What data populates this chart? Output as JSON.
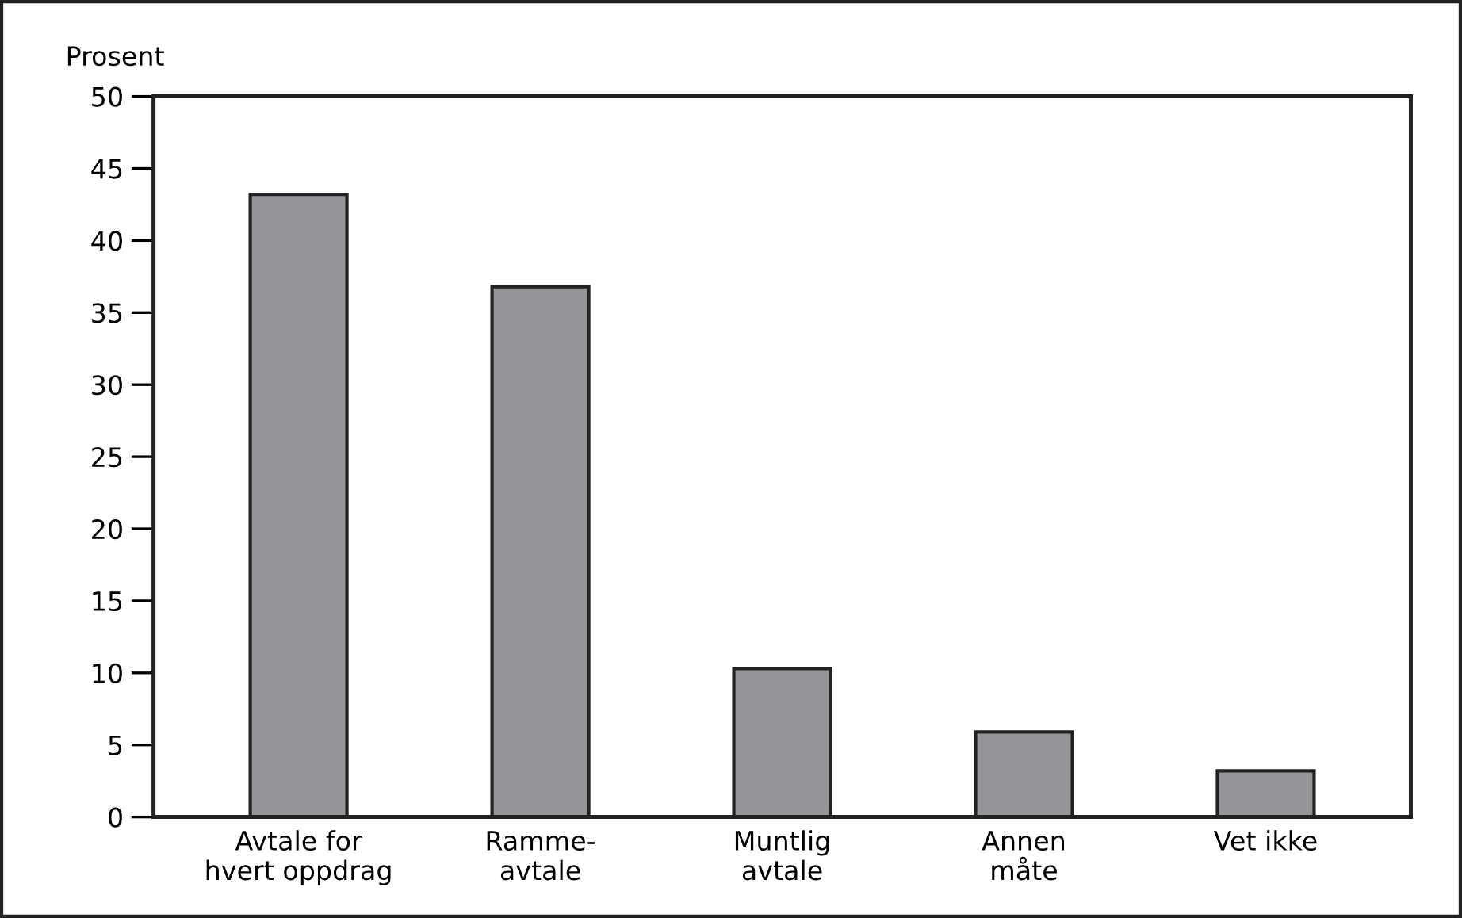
{
  "chart_data": {
    "type": "bar",
    "ylabel": "Prosent",
    "categories": [
      "Avtale for\nhvert oppdrag",
      "Ramme-\navtale",
      "Muntlig\navtale",
      "Annen\nmåte",
      "Vet ikke"
    ],
    "values": [
      43.2,
      36.8,
      10.3,
      5.9,
      3.2
    ],
    "color": "#939598",
    "ylim": [
      0,
      50
    ],
    "yticks": [
      0,
      5,
      10,
      15,
      20,
      25,
      30,
      35,
      40,
      45,
      50
    ],
    "grid": false,
    "legend": false
  }
}
